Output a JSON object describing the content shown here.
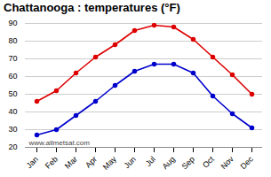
{
  "chart_data": {
    "type": "line",
    "title": "Chattanooga : temperatures (°F)",
    "categories": [
      "Jan",
      "Feb",
      "Mar",
      "Apr",
      "May",
      "Jun",
      "Jul",
      "Aug",
      "Sep",
      "Oct",
      "Nov",
      "Dec"
    ],
    "series": [
      {
        "color": "#dd0000",
        "values": [
          46,
          52,
          62,
          71,
          78,
          86,
          89,
          88,
          81,
          71,
          61,
          50
        ]
      },
      {
        "color": "#0000cc",
        "values": [
          27,
          30,
          38,
          46,
          55,
          63,
          67,
          67,
          62,
          49,
          39,
          31
        ]
      }
    ],
    "ylim": [
      20,
      90
    ],
    "yticks": [
      20,
      30,
      40,
      50,
      60,
      70,
      80,
      90
    ],
    "grid": true,
    "marker": "circle",
    "annotations": [
      "www.allmetsat.com"
    ]
  }
}
